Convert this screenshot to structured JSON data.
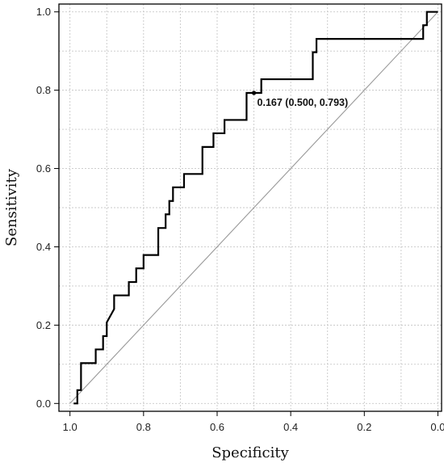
{
  "chart_data": {
    "type": "line",
    "xlabel": "Specificity",
    "ylabel": "Sensitivity",
    "xlim": [
      1.03,
      -0.01
    ],
    "ylim": [
      -0.02,
      1.02
    ],
    "x_reversed": true,
    "x_ticks": [
      1.0,
      0.8,
      0.6,
      0.4,
      0.2,
      0.0
    ],
    "x_tick_labels": [
      "1.0",
      "0.8",
      "0.6",
      "0.4",
      "0.2",
      "0.0"
    ],
    "y_ticks": [
      0.0,
      0.2,
      0.4,
      0.6,
      0.8,
      1.0
    ],
    "y_tick_labels": [
      "0.0",
      "0.2",
      "0.4",
      "0.6",
      "0.8",
      "1.0"
    ],
    "grid": true,
    "colors": {
      "roc": "#000000",
      "reference": "#999999",
      "grid": "#c8c8c8"
    },
    "series": [
      {
        "x": [
          0.99,
          0.98,
          0.98,
          0.97,
          0.97,
          0.93,
          0.93,
          0.91,
          0.91,
          0.9,
          0.9,
          0.88,
          0.88,
          0.84,
          0.84,
          0.82,
          0.82,
          0.8,
          0.8,
          0.76,
          0.76,
          0.74,
          0.74,
          0.73,
          0.73,
          0.72,
          0.72,
          0.69,
          0.69,
          0.64,
          0.64,
          0.61,
          0.61,
          0.58,
          0.58,
          0.52,
          0.52,
          0.5,
          0.5,
          0.48,
          0.48,
          0.34,
          0.34,
          0.33,
          0.33,
          0.04,
          0.04,
          0.03,
          0.03,
          0.0
        ],
        "y": [
          0.0,
          0.0,
          0.034,
          0.034,
          0.103,
          0.103,
          0.138,
          0.138,
          0.172,
          0.172,
          0.207,
          0.241,
          0.276,
          0.276,
          0.31,
          0.31,
          0.345,
          0.345,
          0.379,
          0.379,
          0.448,
          0.448,
          0.483,
          0.483,
          0.517,
          0.517,
          0.552,
          0.552,
          0.586,
          0.586,
          0.655,
          0.655,
          0.69,
          0.69,
          0.724,
          0.724,
          0.793,
          0.793,
          0.793,
          0.793,
          0.828,
          0.828,
          0.897,
          0.897,
          0.931,
          0.931,
          0.966,
          0.966,
          1.0,
          1.0
        ]
      },
      {
        "x": [
          1.0,
          0.0
        ],
        "y": [
          0.0,
          1.0
        ]
      }
    ],
    "annotations": [
      {
        "x": 0.5,
        "y": 0.793,
        "text": "0.167 (0.500, 0.793)"
      }
    ]
  }
}
